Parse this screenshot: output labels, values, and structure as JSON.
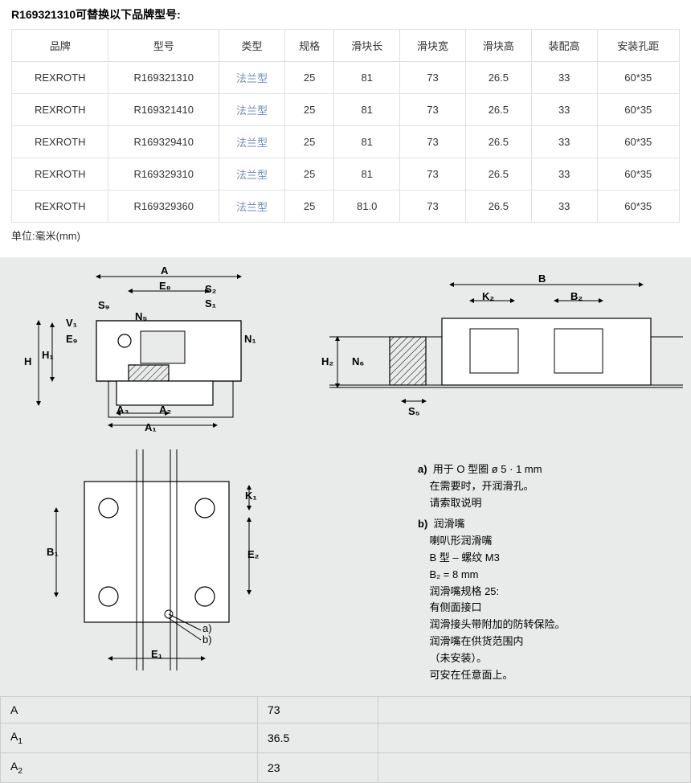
{
  "header": "R169321310可替换以下品牌型号:",
  "columns": [
    "品牌",
    "型号",
    "类型",
    "规格",
    "滑块长",
    "滑块宽",
    "滑块高",
    "装配高",
    "安装孔距"
  ],
  "rows": [
    [
      "REXROTH",
      "R169321310",
      "法兰型",
      "25",
      "81",
      "73",
      "26.5",
      "33",
      "60*35"
    ],
    [
      "REXROTH",
      "R169321410",
      "法兰型",
      "25",
      "81",
      "73",
      "26.5",
      "33",
      "60*35"
    ],
    [
      "REXROTH",
      "R169329410",
      "法兰型",
      "25",
      "81",
      "73",
      "26.5",
      "33",
      "60*35"
    ],
    [
      "REXROTH",
      "R169329310",
      "法兰型",
      "25",
      "81",
      "73",
      "26.5",
      "33",
      "60*35"
    ],
    [
      "REXROTH",
      "R169329360",
      "法兰型",
      "25",
      "81.0",
      "73",
      "26.5",
      "33",
      "60*35"
    ]
  ],
  "type_col_index": 2,
  "unit_label": "单位:毫米(mm)",
  "diagram_labels": {
    "front": {
      "A": "A",
      "E8": "E₈",
      "S2": "S₂",
      "S1": "S₁",
      "S9": "S₉",
      "N5": "N₅",
      "V1": "V₁",
      "E9": "E₉",
      "H": "H",
      "H1": "H₁",
      "N1": "N₁",
      "A3": "A₃",
      "A2": "A₂",
      "A1": "A₁"
    },
    "side": {
      "B": "B",
      "K2": "K₂",
      "B2": "B₂",
      "H2": "H₂",
      "N6": "N₆",
      "S5": "S₅"
    },
    "top": {
      "K1": "K₁",
      "B1": "B₁",
      "E2": "E₂",
      "E1": "E₁",
      "a": "a)",
      "b": "b)"
    }
  },
  "notes": {
    "a_label": "a)",
    "a_line1": "用于 O 型圈 ø 5 · 1 mm",
    "a_line2": "在需要时，开润滑孔。",
    "a_line3": "请索取说明",
    "b_label": "b)",
    "b_line1": "润滑嘴",
    "b_line2": "喇叭形润滑嘴",
    "b_line3": "B 型 – 螺纹 M3",
    "b_line4": "B₂ = 8 mm",
    "b_line5": "润滑嘴规格 25:",
    "b_line6": "有侧面接口",
    "b_line7": "润滑接头带附加的防转保险。",
    "b_line8": "润滑嘴在供货范围内",
    "b_line9": "（未安装）。",
    "b_line10": "可安在任意面上。"
  },
  "dims": [
    {
      "label_html": "A",
      "value": "73"
    },
    {
      "label_html": "A<span class=\"sub\">1</span>",
      "value": "36.5"
    },
    {
      "label_html": "A<span class=\"sub\">2</span>",
      "value": "23"
    }
  ],
  "colors": {
    "diagram_bg": "#e9eaea",
    "link": "#6e8fb5",
    "border": "#e0e0e0",
    "text": "#333"
  }
}
